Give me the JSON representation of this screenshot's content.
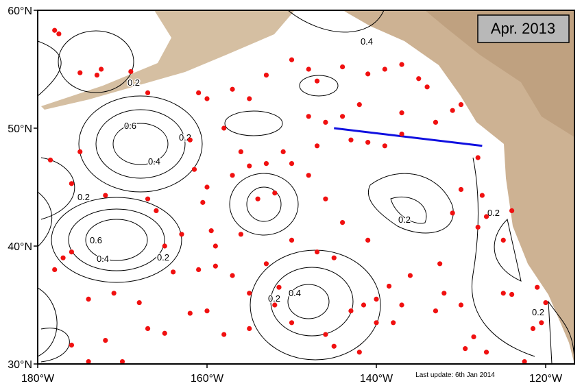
{
  "map": {
    "title": "Apr. 2013",
    "footer": "Last update: 6th Jan 2014",
    "lat_ticks": [
      {
        "value": 60,
        "label": "60°N"
      },
      {
        "value": 50,
        "label": "50°N"
      },
      {
        "value": 40,
        "label": "40°N"
      },
      {
        "value": 30,
        "label": "30°N"
      }
    ],
    "lon_ticks": [
      {
        "value": -180,
        "label": "180°W"
      },
      {
        "value": -160,
        "label": "160°W"
      },
      {
        "value": -140,
        "label": "140°W"
      },
      {
        "value": -120,
        "label": "120°W"
      }
    ],
    "contour_labels": [
      "0.4",
      "0.2",
      "0.6",
      "0.2",
      "0.4",
      "0.2",
      "0.6",
      "0.4",
      "0.2",
      "0.2",
      "0.4",
      "0.2",
      "0.2",
      "0.2"
    ],
    "section": {
      "color": "#1010e0",
      "lon": [
        -145,
        -127.5
      ],
      "lat": [
        50,
        48.5
      ]
    },
    "floats": {
      "color": "#f01010",
      "lon": [
        -178,
        -177.5,
        -175,
        -173,
        -172.5,
        -169,
        -167,
        -178.5,
        -176,
        -175,
        -172,
        -167,
        -177,
        -178,
        -176,
        -174,
        -171,
        -168,
        -172,
        -176,
        -174,
        -170,
        -167,
        -165,
        -164,
        -161,
        -159,
        -157,
        -161.5,
        -160.5,
        -159.5,
        -160,
        -162,
        -160,
        -161,
        -158,
        -157,
        -155,
        -153,
        -150,
        -148,
        -147,
        -144,
        -141,
        -139,
        -137,
        -135,
        -134,
        -142,
        -137,
        -144,
        -146,
        -148,
        -143,
        -141,
        -139,
        -137,
        -133,
        -131,
        -130,
        -128,
        -130,
        -127.5,
        -131,
        -128,
        -127,
        -124,
        -125,
        -125,
        -124,
        -121,
        -120,
        -120.5,
        -121.5,
        -122.5,
        -130,
        -132,
        -132.5,
        -136,
        -138.5,
        -140,
        -141.5,
        -143,
        -140,
        -138,
        -137,
        -133,
        -129.5,
        -127,
        -128.5,
        -142,
        -145,
        -146,
        -150,
        -152,
        -155,
        -158,
        -160,
        -162,
        -155,
        -153,
        -150,
        -147,
        -145,
        -141,
        -144,
        -146,
        -148,
        -150,
        -152,
        -154,
        -155,
        -157,
        -156,
        -153,
        -151,
        -147,
        -151.5,
        -156,
        -159,
        -163,
        -165,
        -166
      ],
      "lat": [
        58.3,
        58,
        54.7,
        54.5,
        55,
        54.8,
        53,
        47.3,
        45.3,
        48,
        44.3,
        44,
        39,
        38,
        39.5,
        35.5,
        36,
        35.2,
        32,
        31.6,
        30.2,
        30.2,
        33,
        32.6,
        37.8,
        38,
        38.3,
        37.5,
        46.5,
        43.7,
        41.3,
        45,
        49,
        52.5,
        53,
        50,
        53.3,
        52.5,
        54.5,
        55.8,
        55,
        54,
        55.2,
        54.6,
        55,
        55.4,
        54.2,
        53.5,
        52,
        51.3,
        51,
        50.5,
        51,
        49,
        48.8,
        48.5,
        49.5,
        50.5,
        51.5,
        52,
        47.5,
        44.8,
        44.3,
        42.8,
        41.6,
        42.5,
        43,
        40.5,
        36,
        35.9,
        36.5,
        35.2,
        33.5,
        33,
        30.2,
        35,
        36,
        38.5,
        37.5,
        36.6,
        35.5,
        35,
        34.5,
        33.5,
        33.5,
        35,
        34.5,
        31.3,
        31,
        32.3,
        31,
        31.5,
        32.5,
        33.5,
        35,
        33,
        32.5,
        34.5,
        34.3,
        36,
        38.5,
        40.5,
        39.5,
        39,
        40.5,
        42,
        44,
        46,
        47,
        44.5,
        44,
        46.8,
        46,
        48,
        47,
        48,
        48.5,
        36.5,
        41,
        40,
        41,
        40,
        43
      ]
    }
  }
}
